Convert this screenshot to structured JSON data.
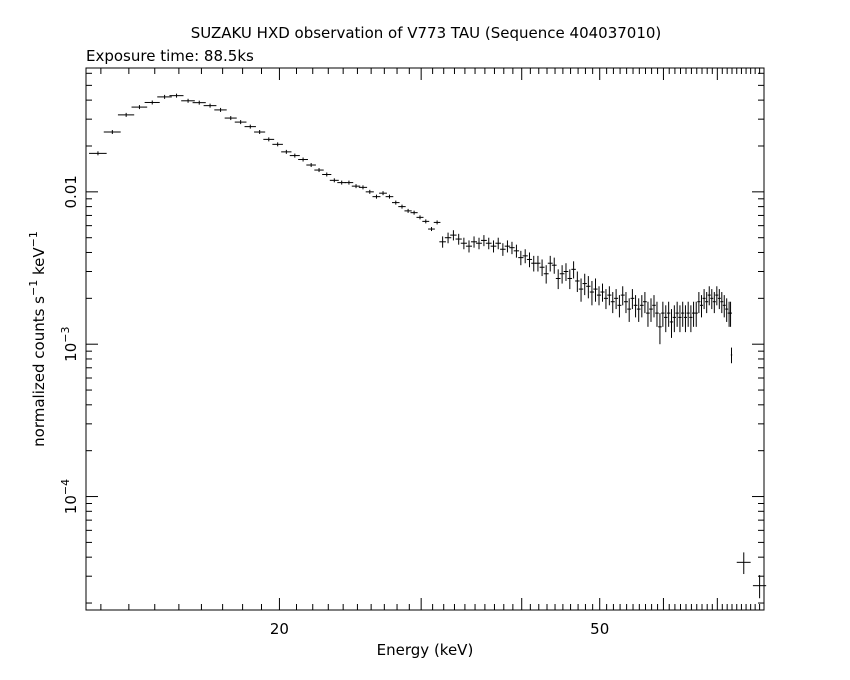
{
  "chart_data": {
    "type": "scatter",
    "title": "SUZAKU HXD observation of V773 TAU (Sequence 404037010)",
    "subtitle": "Exposure time: 88.5ks",
    "xlabel": "Energy (keV)",
    "ylabel_parts": {
      "main": "normalized counts s",
      "exp1": "−1",
      "unit": " keV",
      "exp2": "−1"
    },
    "x_scale": "log",
    "y_scale": "log",
    "xlim": [
      11.5,
      80
    ],
    "ylim": [
      1.8e-05,
      0.065
    ],
    "x_ticks": [
      {
        "value": 20,
        "label": "20"
      },
      {
        "value": 50,
        "label": "50"
      }
    ],
    "y_ticks": [
      {
        "value": 0.01,
        "base": "0.01",
        "exp": ""
      },
      {
        "value": 0.001,
        "base": "10",
        "exp": "−3"
      },
      {
        "value": 0.0001,
        "base": "10",
        "exp": "−4"
      }
    ],
    "series": [
      {
        "points": [
          [
            11.9,
            0.0179,
            0.3,
            0.0
          ],
          [
            12.4,
            0.0247,
            0.3,
            0.0
          ],
          [
            12.9,
            0.032,
            0.3,
            0.0
          ],
          [
            13.4,
            0.036,
            0.3,
            0.0
          ],
          [
            13.9,
            0.0386,
            0.3,
            0.0
          ],
          [
            14.4,
            0.042,
            0.3,
            0.0
          ],
          [
            14.9,
            0.0428,
            0.3,
            0.0
          ],
          [
            15.4,
            0.0396,
            0.3,
            0.0
          ],
          [
            15.9,
            0.0385,
            0.3,
            0.0
          ],
          [
            16.4,
            0.0368,
            0.3,
            0.0
          ],
          [
            16.9,
            0.0345,
            0.3,
            0.0
          ],
          [
            17.4,
            0.0305,
            0.3,
            0.0
          ],
          [
            17.9,
            0.0287,
            0.3,
            0.0
          ],
          [
            18.4,
            0.0268,
            0.3,
            0.0
          ],
          [
            18.9,
            0.0247,
            0.3,
            0.0
          ],
          [
            19.4,
            0.0221,
            0.3,
            0.0
          ],
          [
            19.9,
            0.0205,
            0.3,
            0.0
          ],
          [
            20.4,
            0.0183,
            0.3,
            0.0
          ],
          [
            20.9,
            0.0173,
            0.3,
            0.0
          ],
          [
            21.4,
            0.0163,
            0.3,
            0.0
          ],
          [
            21.9,
            0.015,
            0.3,
            0.0
          ],
          [
            22.4,
            0.0139,
            0.3,
            0.0
          ],
          [
            22.9,
            0.013,
            0.3,
            0.0
          ],
          [
            23.4,
            0.0119,
            0.3,
            0.0
          ],
          [
            23.9,
            0.0115,
            0.3,
            0.0
          ],
          [
            24.4,
            0.0115,
            0.3,
            0.0
          ],
          [
            24.9,
            0.0109,
            0.3,
            0.0
          ],
          [
            25.4,
            0.0107,
            0.3,
            0.0
          ],
          [
            25.9,
            0.01,
            0.3,
            0.0
          ],
          [
            26.4,
            0.0093,
            0.3,
            0.0
          ],
          [
            26.9,
            0.0098,
            0.3,
            0.0
          ],
          [
            27.4,
            0.0093,
            0.3,
            0.0
          ],
          [
            27.9,
            0.0085,
            0.3,
            0.0
          ],
          [
            28.4,
            0.008,
            0.3,
            0.0
          ],
          [
            28.9,
            0.0075,
            0.3,
            0.0
          ],
          [
            29.4,
            0.0073,
            0.3,
            0.0
          ],
          [
            29.9,
            0.0068,
            0.3,
            0.0
          ],
          [
            30.4,
            0.0064,
            0.3,
            0.0
          ],
          [
            30.9,
            0.0057,
            0.3,
            0.0
          ],
          [
            31.4,
            0.0063,
            0.3,
            0.0
          ],
          [
            31.9,
            0.0047,
            0.3,
            0.0004
          ],
          [
            32.4,
            0.005,
            0.3,
            0.0004
          ],
          [
            32.9,
            0.0052,
            0.3,
            0.0004
          ],
          [
            33.4,
            0.0049,
            0.3,
            0.0004
          ],
          [
            33.9,
            0.0046,
            0.3,
            0.0004
          ],
          [
            34.4,
            0.0044,
            0.3,
            0.0004
          ],
          [
            34.9,
            0.0047,
            0.3,
            0.0004
          ],
          [
            35.4,
            0.0046,
            0.3,
            0.0004
          ],
          [
            35.9,
            0.0048,
            0.3,
            0.0004
          ],
          [
            36.4,
            0.0046,
            0.3,
            0.0004
          ],
          [
            36.9,
            0.0044,
            0.3,
            0.0004
          ],
          [
            37.4,
            0.0046,
            0.3,
            0.0004
          ],
          [
            37.9,
            0.0042,
            0.3,
            0.0004
          ],
          [
            38.4,
            0.0044,
            0.3,
            0.0004
          ],
          [
            38.9,
            0.0043,
            0.3,
            0.0004
          ],
          [
            39.4,
            0.0041,
            0.3,
            0.0004
          ],
          [
            39.9,
            0.0037,
            0.3,
            0.0004
          ],
          [
            40.4,
            0.0038,
            0.3,
            0.0004
          ],
          [
            40.9,
            0.0036,
            0.3,
            0.0004
          ],
          [
            41.4,
            0.0034,
            0.3,
            0.0004
          ],
          [
            41.9,
            0.0034,
            0.3,
            0.0004
          ],
          [
            42.4,
            0.0032,
            0.3,
            0.0004
          ],
          [
            42.9,
            0.0029,
            0.3,
            0.0004
          ],
          [
            43.4,
            0.0034,
            0.3,
            0.0004
          ],
          [
            43.9,
            0.0033,
            0.3,
            0.0004
          ],
          [
            44.4,
            0.0027,
            0.3,
            0.0004
          ],
          [
            44.9,
            0.0029,
            0.3,
            0.0004
          ],
          [
            45.4,
            0.003,
            0.3,
            0.0004
          ],
          [
            45.9,
            0.0027,
            0.3,
            0.0004
          ],
          [
            46.4,
            0.0031,
            0.3,
            0.0004
          ],
          [
            46.9,
            0.0026,
            0.3,
            0.0004
          ],
          [
            47.4,
            0.0023,
            0.3,
            0.0004
          ],
          [
            47.9,
            0.0025,
            0.3,
            0.0004
          ],
          [
            48.4,
            0.0024,
            0.3,
            0.0004
          ],
          [
            48.9,
            0.0022,
            0.3,
            0.0004
          ],
          [
            49.4,
            0.0023,
            0.3,
            0.0004
          ],
          [
            49.9,
            0.0021,
            0.3,
            0.0003
          ],
          [
            50.4,
            0.0022,
            0.3,
            0.0003
          ],
          [
            50.9,
            0.002,
            0.3,
            0.0003
          ],
          [
            51.4,
            0.0021,
            0.3,
            0.0003
          ],
          [
            51.9,
            0.0019,
            0.3,
            0.0003
          ],
          [
            52.4,
            0.002,
            0.3,
            0.0003
          ],
          [
            52.9,
            0.0018,
            0.3,
            0.0003
          ],
          [
            53.4,
            0.0021,
            0.3,
            0.0003
          ],
          [
            53.9,
            0.0019,
            0.3,
            0.0003
          ],
          [
            54.4,
            0.0017,
            0.3,
            0.0003
          ],
          [
            54.9,
            0.002,
            0.3,
            0.0003
          ],
          [
            55.4,
            0.0018,
            0.3,
            0.0003
          ],
          [
            55.9,
            0.0017,
            0.3,
            0.0003
          ],
          [
            56.4,
            0.0018,
            0.3,
            0.0003
          ],
          [
            56.9,
            0.0019,
            0.3,
            0.0003
          ],
          [
            57.4,
            0.0016,
            0.3,
            0.0003
          ],
          [
            57.9,
            0.0017,
            0.3,
            0.0003
          ],
          [
            58.4,
            0.0018,
            0.3,
            0.0003
          ],
          [
            58.9,
            0.0016,
            0.3,
            0.0003
          ],
          [
            59.4,
            0.0013,
            0.3,
            0.0003
          ],
          [
            59.9,
            0.0016,
            0.3,
            0.0003
          ],
          [
            60.4,
            0.0015,
            0.3,
            0.0003
          ],
          [
            60.9,
            0.0016,
            0.3,
            0.0003
          ],
          [
            61.4,
            0.0014,
            0.3,
            0.0003
          ],
          [
            61.9,
            0.0015,
            0.3,
            0.0003
          ],
          [
            62.4,
            0.0016,
            0.3,
            0.0003
          ],
          [
            62.9,
            0.0015,
            0.3,
            0.0003
          ],
          [
            63.4,
            0.0016,
            0.3,
            0.0003
          ],
          [
            63.9,
            0.0015,
            0.3,
            0.0003
          ],
          [
            64.4,
            0.0016,
            0.3,
            0.0003
          ],
          [
            64.9,
            0.0015,
            0.3,
            0.0003
          ],
          [
            65.4,
            0.0016,
            0.3,
            0.0003
          ],
          [
            65.9,
            0.0016,
            0.3,
            0.0003
          ],
          [
            66.4,
            0.0019,
            0.3,
            0.0003
          ],
          [
            66.9,
            0.0018,
            0.3,
            0.0003
          ],
          [
            67.4,
            0.002,
            0.3,
            0.0003
          ],
          [
            67.9,
            0.0019,
            0.3,
            0.0003
          ],
          [
            68.4,
            0.0021,
            0.3,
            0.0003
          ],
          [
            68.9,
            0.002,
            0.3,
            0.0003
          ],
          [
            69.4,
            0.0019,
            0.3,
            0.0003
          ],
          [
            69.9,
            0.0021,
            0.3,
            0.0003
          ],
          [
            70.4,
            0.002,
            0.3,
            0.0003
          ],
          [
            70.9,
            0.0019,
            0.3,
            0.0003
          ],
          [
            71.4,
            0.0018,
            0.3,
            0.0003
          ],
          [
            71.9,
            0.0017,
            0.3,
            0.0003
          ],
          [
            72.4,
            0.0016,
            0.3,
            0.0003
          ],
          [
            72.7,
            0.0016,
            0.3,
            0.0003
          ],
          [
            72.9,
            0.00085,
            0.15,
            0.0001
          ],
          [
            75.5,
            3.7e-05,
            1.5,
            6e-06
          ],
          [
            79.0,
            2.6e-05,
            1.5,
            4.5e-06
          ]
        ]
      }
    ],
    "grid": false,
    "legend": "none"
  }
}
